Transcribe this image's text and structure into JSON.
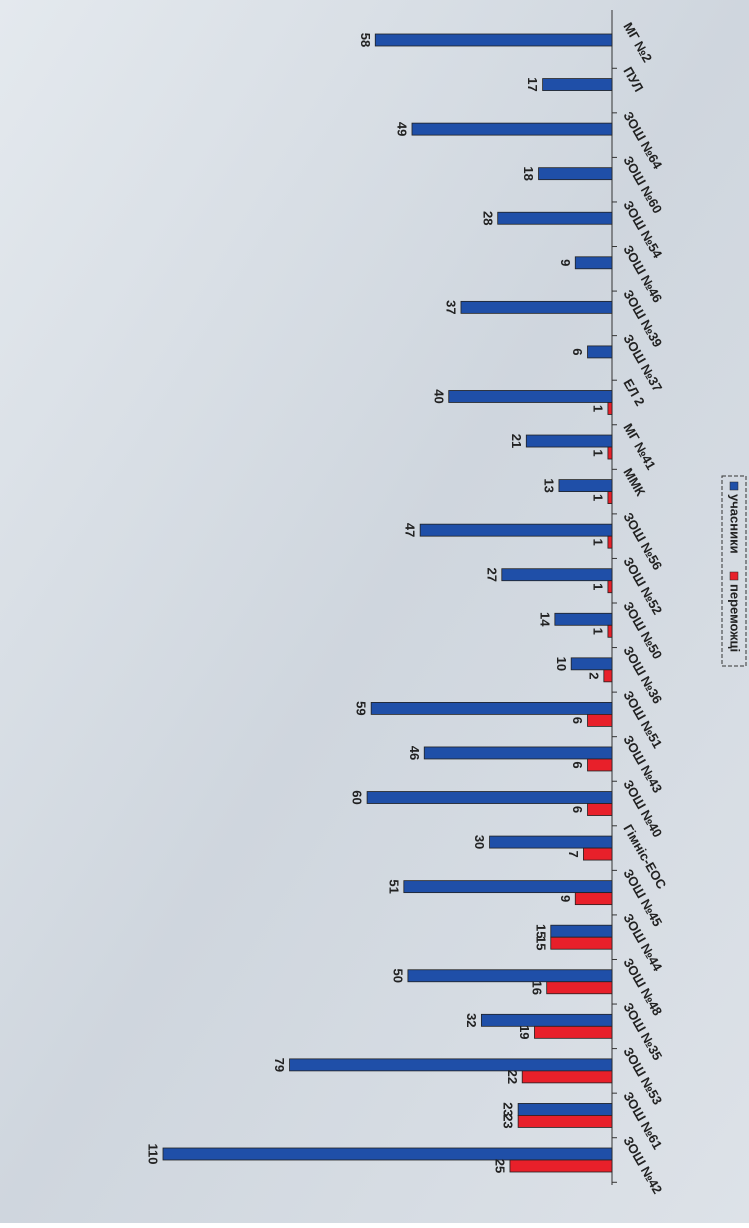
{
  "chart_data": {
    "type": "bar",
    "orientation": "horizontal",
    "categories": [
      "ЗОШ №42",
      "ЗОШ №61",
      "ЗОШ №53",
      "ЗОШ №35",
      "ЗОШ №48",
      "ЗОШ №44",
      "ЗОШ №45",
      "Гімніс-ЕОС",
      "ЗОШ №40",
      "ЗОШ №43",
      "ЗОШ №51",
      "ЗОШ №36",
      "ЗОШ №50",
      "ЗОШ №52",
      "ЗОШ №56",
      "ММК",
      "МГ №41",
      "ЕЛ 2",
      "ЗОШ №37",
      "ЗОШ №39",
      "ЗОШ №46",
      "ЗОШ №54",
      "ЗОШ №60",
      "ЗОШ №64",
      "ПУЛ",
      "МГ №2"
    ],
    "series": [
      {
        "name": "учасники",
        "color": "#1f4fa8",
        "values": [
          110,
          23,
          79,
          32,
          50,
          15,
          51,
          30,
          60,
          46,
          59,
          10,
          14,
          27,
          47,
          13,
          21,
          40,
          6,
          37,
          9,
          28,
          18,
          49,
          17,
          58
        ]
      },
      {
        "name": "переможці",
        "color": "#e8202a",
        "values": [
          25,
          23,
          22,
          19,
          16,
          15,
          9,
          7,
          6,
          6,
          6,
          2,
          1,
          1,
          1,
          1,
          1,
          1,
          null,
          null,
          null,
          null,
          null,
          null,
          null,
          null
        ]
      }
    ],
    "ylim": [
      0,
      110
    ]
  }
}
